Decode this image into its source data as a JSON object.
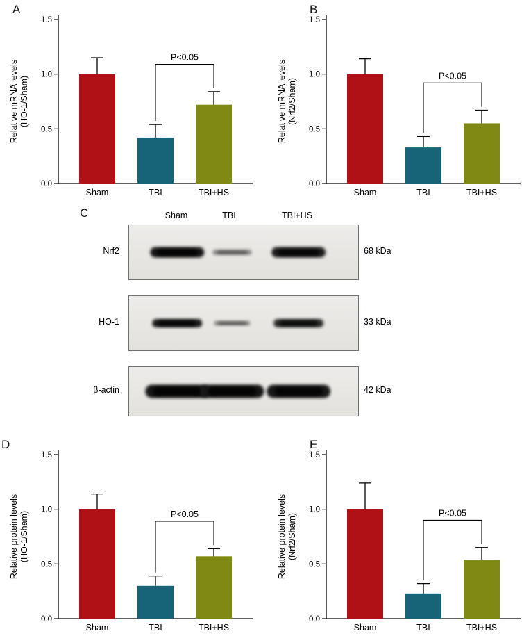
{
  "colors": {
    "sham": "#b01116",
    "tbi": "#176478",
    "tbi_hs": "#7f8a15",
    "axis": "#000000",
    "blot_background": "#e9e7e4"
  },
  "chart_data": [
    {
      "panel": "A",
      "type": "bar",
      "categories": [
        "Sham",
        "TBI",
        "TBI+HS"
      ],
      "values": [
        1.0,
        0.42,
        0.72
      ],
      "errors": [
        0.15,
        0.12,
        0.12
      ],
      "bar_colors": [
        "#b01116",
        "#176478",
        "#7f8a15"
      ],
      "ylabel_line1": "Relative mRNA levels",
      "ylabel_line2": "(HO-1/Sham)",
      "ylim": [
        0,
        1.5
      ],
      "yticks": [
        0,
        0.5,
        1,
        1.5
      ],
      "significance": {
        "label": "P<0.05",
        "between": [
          1,
          2
        ]
      }
    },
    {
      "panel": "B",
      "type": "bar",
      "categories": [
        "Sham",
        "TBI",
        "TBI+HS"
      ],
      "values": [
        1.0,
        0.33,
        0.55
      ],
      "errors": [
        0.14,
        0.1,
        0.12
      ],
      "bar_colors": [
        "#b01116",
        "#176478",
        "#7f8a15"
      ],
      "ylabel_line1": "Relative mRNA levels",
      "ylabel_line2": "(Nrf2/Sham)",
      "ylim": [
        0,
        1.5
      ],
      "yticks": [
        0,
        0.5,
        1,
        1.5
      ],
      "significance": {
        "label": "P<0.05",
        "between": [
          1,
          2
        ]
      }
    },
    {
      "panel": "D",
      "type": "bar",
      "categories": [
        "Sham",
        "TBI",
        "TBI+HS"
      ],
      "values": [
        1.0,
        0.3,
        0.57
      ],
      "errors": [
        0.14,
        0.09,
        0.07
      ],
      "bar_colors": [
        "#b01116",
        "#176478",
        "#7f8a15"
      ],
      "ylabel_line1": "Relative protein levels",
      "ylabel_line2": "(HO-1/Sham)",
      "ylim": [
        0,
        1.5
      ],
      "yticks": [
        0,
        0.5,
        1,
        1.5
      ],
      "significance": {
        "label": "P<0.05",
        "between": [
          1,
          2
        ]
      }
    },
    {
      "panel": "E",
      "type": "bar",
      "categories": [
        "Sham",
        "TBI",
        "TBI+HS"
      ],
      "values": [
        1.0,
        0.23,
        0.54
      ],
      "errors": [
        0.24,
        0.09,
        0.11
      ],
      "bar_colors": [
        "#b01116",
        "#176478",
        "#7f8a15"
      ],
      "ylabel_line1": "Relative protein levels",
      "ylabel_line2": "(Nrf2/Sham)",
      "ylim": [
        0,
        1.5
      ],
      "yticks": [
        0,
        0.5,
        1,
        1.5
      ],
      "significance": {
        "label": "P<0.05",
        "between": [
          1,
          2
        ]
      }
    }
  ],
  "blot": {
    "panel": "C",
    "column_headers": [
      "Sham",
      "TBI",
      "TBI+HS"
    ],
    "rows": [
      {
        "label": "Nrf2",
        "kda": "68 kDa",
        "intensities": [
          1.0,
          0.3,
          0.95
        ]
      },
      {
        "label": "HO-1",
        "kda": "33 kDa",
        "intensities": [
          0.95,
          0.35,
          0.85
        ]
      },
      {
        "label": "β-actin",
        "kda": "42 kDa",
        "intensities": [
          1.0,
          1.0,
          0.98
        ]
      }
    ]
  }
}
